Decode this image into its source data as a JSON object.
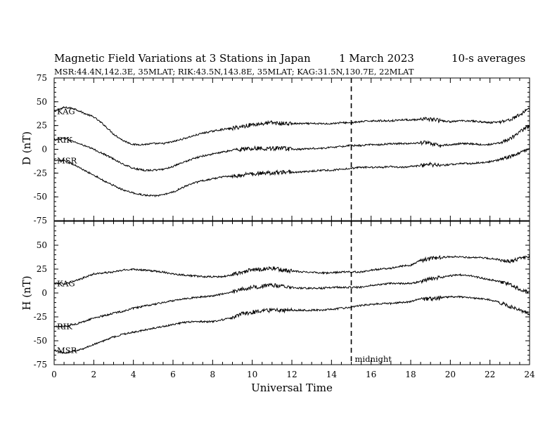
{
  "chart_data": [
    {
      "type": "line",
      "panel": "D",
      "title": "Magnetic Field Variations at 3 Stations in Japan",
      "date": "1   March   2023",
      "averaging": "10-s averages",
      "subtitle": "MSR:44.4N,142.3E, 35MLAT;  RIK:43.5N,143.8E, 35MLAT;  KAG:31.5N,130.7E, 22MLAT",
      "xlabel": "Universal Time",
      "ylabel": "D (nT)",
      "xlim": [
        0,
        24
      ],
      "ylim": [
        -75,
        75
      ],
      "yticks": [
        "75",
        "50",
        "25",
        "0",
        "-25",
        "-50",
        "-75"
      ],
      "grid": false,
      "x": [
        0,
        0.5,
        1,
        1.5,
        2,
        2.5,
        3,
        3.5,
        4,
        4.5,
        5,
        5.5,
        6,
        6.5,
        7,
        7.5,
        8,
        8.5,
        9,
        9.5,
        10,
        10.5,
        11,
        11.5,
        12,
        12.5,
        13,
        13.5,
        14,
        14.5,
        15,
        15.5,
        16,
        16.5,
        17,
        17.5,
        18,
        18.5,
        19,
        19.5,
        20,
        20.5,
        21,
        21.5,
        22,
        22.5,
        23,
        23.5,
        24
      ],
      "series": [
        {
          "name": "KAG",
          "values": [
            40,
            44,
            43,
            38,
            34,
            26,
            16,
            9,
            5,
            5,
            6,
            6,
            8,
            11,
            14,
            17,
            19,
            21,
            22,
            24,
            26,
            27,
            28,
            27,
            27,
            27,
            27,
            27,
            27,
            28,
            28,
            29,
            30,
            30,
            30,
            31,
            31,
            31,
            32,
            30,
            29,
            30,
            30,
            29,
            28,
            29,
            31,
            36,
            44
          ]
        },
        {
          "name": "RIK",
          "values": [
            10,
            12,
            8,
            4,
            0,
            -5,
            -10,
            -16,
            -20,
            -22,
            -22,
            -21,
            -18,
            -14,
            -10,
            -7,
            -5,
            -3,
            -1,
            0,
            1,
            1,
            1,
            1,
            0,
            0,
            1,
            1,
            2,
            3,
            4,
            4,
            5,
            5,
            6,
            6,
            6,
            7,
            6,
            4,
            5,
            6,
            6,
            5,
            5,
            7,
            11,
            18,
            25
          ]
        },
        {
          "name": "MSR",
          "values": [
            -12,
            -12,
            -16,
            -22,
            -27,
            -33,
            -38,
            -43,
            -46,
            -48,
            -49,
            -48,
            -45,
            -40,
            -36,
            -33,
            -31,
            -29,
            -28,
            -27,
            -26,
            -25,
            -25,
            -24,
            -24,
            -24,
            -23,
            -22,
            -22,
            -21,
            -20,
            -19,
            -19,
            -19,
            -18,
            -19,
            -18,
            -17,
            -16,
            -17,
            -16,
            -15,
            -15,
            -14,
            -13,
            -11,
            -8,
            -3,
            0
          ]
        }
      ]
    },
    {
      "type": "line",
      "panel": "H",
      "xlabel": "Universal Time",
      "ylabel": "H (nT)",
      "xlim": [
        0,
        24
      ],
      "ylim": [
        -75,
        75
      ],
      "yticks": [
        "50",
        "25",
        "0",
        "-25",
        "-50",
        "-75"
      ],
      "xticks": [
        "0",
        "2",
        "4",
        "6",
        "8",
        "10",
        "12",
        "14",
        "16",
        "18",
        "20",
        "22",
        "24"
      ],
      "grid": false,
      "annotations": [
        {
          "text": "midnight",
          "x": 15
        }
      ],
      "x": [
        0,
        0.5,
        1,
        1.5,
        2,
        2.5,
        3,
        3.5,
        4,
        4.5,
        5,
        5.5,
        6,
        6.5,
        7,
        7.5,
        8,
        8.5,
        9,
        9.5,
        10,
        10.5,
        11,
        11.5,
        12,
        12.5,
        13,
        13.5,
        14,
        14.5,
        15,
        15.5,
        16,
        16.5,
        17,
        17.5,
        18,
        18.5,
        19,
        19.5,
        20,
        20.5,
        21,
        21.5,
        22,
        22.5,
        23,
        23.5,
        24
      ],
      "series": [
        {
          "name": "KAG",
          "values": [
            10,
            10,
            12,
            16,
            20,
            21,
            22,
            24,
            25,
            24,
            23,
            22,
            20,
            19,
            18,
            17,
            17,
            17,
            19,
            22,
            24,
            25,
            26,
            24,
            23,
            22,
            22,
            21,
            21,
            22,
            22,
            22,
            24,
            25,
            26,
            28,
            29,
            34,
            36,
            37,
            38,
            38,
            37,
            37,
            36,
            35,
            33,
            36,
            38
          ]
        },
        {
          "name": "RIK",
          "values": [
            -35,
            -35,
            -33,
            -30,
            -26,
            -24,
            -21,
            -19,
            -16,
            -14,
            -12,
            -10,
            -8,
            -6,
            -5,
            -4,
            -3,
            -1,
            1,
            4,
            6,
            7,
            8,
            7,
            6,
            5,
            5,
            5,
            6,
            6,
            6,
            6,
            8,
            9,
            10,
            10,
            10,
            12,
            15,
            16,
            18,
            19,
            18,
            16,
            14,
            12,
            9,
            4,
            0
          ]
        },
        {
          "name": "MSR",
          "values": [
            -60,
            -63,
            -61,
            -58,
            -54,
            -50,
            -46,
            -43,
            -41,
            -39,
            -37,
            -35,
            -33,
            -31,
            -30,
            -30,
            -30,
            -28,
            -26,
            -22,
            -20,
            -19,
            -18,
            -18,
            -18,
            -18,
            -18,
            -18,
            -17,
            -16,
            -15,
            -13,
            -12,
            -11,
            -11,
            -10,
            -9,
            -6,
            -6,
            -5,
            -4,
            -4,
            -5,
            -6,
            -7,
            -10,
            -14,
            -18,
            -22
          ]
        }
      ]
    }
  ]
}
